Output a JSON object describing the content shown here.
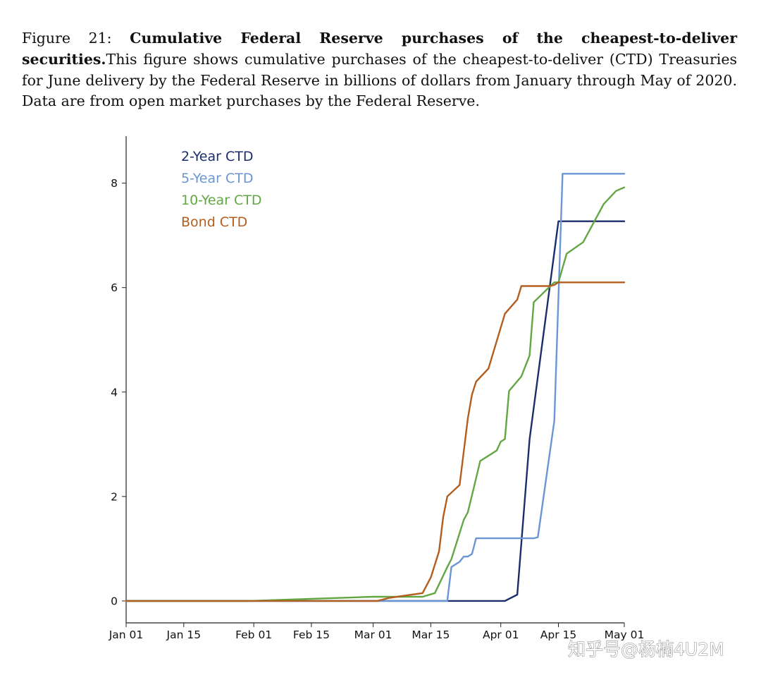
{
  "caption": {
    "label": "Figure 21:",
    "title": "Cumulative Federal Reserve purchases of the cheapest-to-deliver securities.",
    "text": "This figure shows cumulative purchases of the cheapest-to-deliver (CTD) Treasuries for June delivery by the Federal Reserve in billions of dollars from January through May of 2020. Data are from open market purchases by the Federal Reserve."
  },
  "watermark": {
    "text": "知乎号@杨楠4U2M"
  },
  "colors": {
    "two_year": "#1b2e6b",
    "five_year": "#6b96d4",
    "ten_year": "#62a744",
    "bond": "#b35e1e"
  },
  "chart_data": {
    "type": "line",
    "title": "",
    "xlabel": "",
    "ylabel": "",
    "x_unit": "day of year 2020 (Jan 01 = 0)",
    "xlim": [
      0,
      121
    ],
    "ylim": [
      -0.42,
      8.9
    ],
    "x_ticks": [
      {
        "value": 0,
        "label": "Jan 01"
      },
      {
        "value": 14,
        "label": "Jan 15"
      },
      {
        "value": 31,
        "label": "Feb 01"
      },
      {
        "value": 45,
        "label": "Feb 15"
      },
      {
        "value": 60,
        "label": "Mar 01"
      },
      {
        "value": 74,
        "label": "Mar 15"
      },
      {
        "value": 91,
        "label": "Apr 01"
      },
      {
        "value": 105,
        "label": "Apr 15"
      },
      {
        "value": 121,
        "label": "May 01"
      }
    ],
    "y_ticks": [
      {
        "value": 0,
        "label": "0"
      },
      {
        "value": 2,
        "label": "2"
      },
      {
        "value": 4,
        "label": "4"
      },
      {
        "value": 6,
        "label": "6"
      },
      {
        "value": 8,
        "label": "8"
      }
    ],
    "legend_position": "top-left",
    "series": [
      {
        "name": "2-Year CTD",
        "color_key": "two_year",
        "points": [
          [
            0,
            0
          ],
          [
            92,
            0
          ],
          [
            95,
            0.12
          ],
          [
            98,
            3.1
          ],
          [
            105,
            7.27
          ],
          [
            121,
            7.27
          ]
        ]
      },
      {
        "name": "5-Year CTD",
        "color_key": "five_year",
        "points": [
          [
            0,
            0
          ],
          [
            78,
            0
          ],
          [
            79,
            0.65
          ],
          [
            81,
            0.75
          ],
          [
            82,
            0.85
          ],
          [
            83,
            0.85
          ],
          [
            84,
            0.9
          ],
          [
            85,
            1.2
          ],
          [
            99,
            1.2
          ],
          [
            100,
            1.22
          ],
          [
            104,
            3.45
          ],
          [
            106,
            8.18
          ],
          [
            121,
            8.18
          ]
        ]
      },
      {
        "name": "10-Year CTD",
        "color_key": "ten_year",
        "points": [
          [
            0,
            0
          ],
          [
            30,
            0
          ],
          [
            60,
            0.08
          ],
          [
            72,
            0.08
          ],
          [
            75,
            0.15
          ],
          [
            78,
            0.65
          ],
          [
            79,
            0.8
          ],
          [
            82,
            1.55
          ],
          [
            83,
            1.7
          ],
          [
            85,
            2.35
          ],
          [
            86,
            2.68
          ],
          [
            90,
            2.88
          ],
          [
            91,
            3.05
          ],
          [
            92,
            3.1
          ],
          [
            93,
            4.02
          ],
          [
            96,
            4.3
          ],
          [
            98,
            4.7
          ],
          [
            99,
            5.72
          ],
          [
            102,
            5.95
          ],
          [
            104,
            6.1
          ],
          [
            105,
            6.1
          ],
          [
            107,
            6.65
          ],
          [
            111,
            6.87
          ],
          [
            116,
            7.6
          ],
          [
            119,
            7.85
          ],
          [
            121,
            7.92
          ]
        ]
      },
      {
        "name": "Bond CTD",
        "color_key": "bond",
        "points": [
          [
            0,
            0
          ],
          [
            61,
            0
          ],
          [
            64,
            0.06
          ],
          [
            72,
            0.15
          ],
          [
            74,
            0.45
          ],
          [
            76,
            0.95
          ],
          [
            77,
            1.6
          ],
          [
            78,
            2.0
          ],
          [
            81,
            2.22
          ],
          [
            83,
            3.5
          ],
          [
            84,
            3.95
          ],
          [
            85,
            4.2
          ],
          [
            88,
            4.45
          ],
          [
            92,
            5.5
          ],
          [
            95,
            5.77
          ],
          [
            96,
            6.03
          ],
          [
            103,
            6.03
          ],
          [
            104,
            6.05
          ],
          [
            105,
            6.1
          ],
          [
            121,
            6.1
          ]
        ]
      }
    ]
  }
}
